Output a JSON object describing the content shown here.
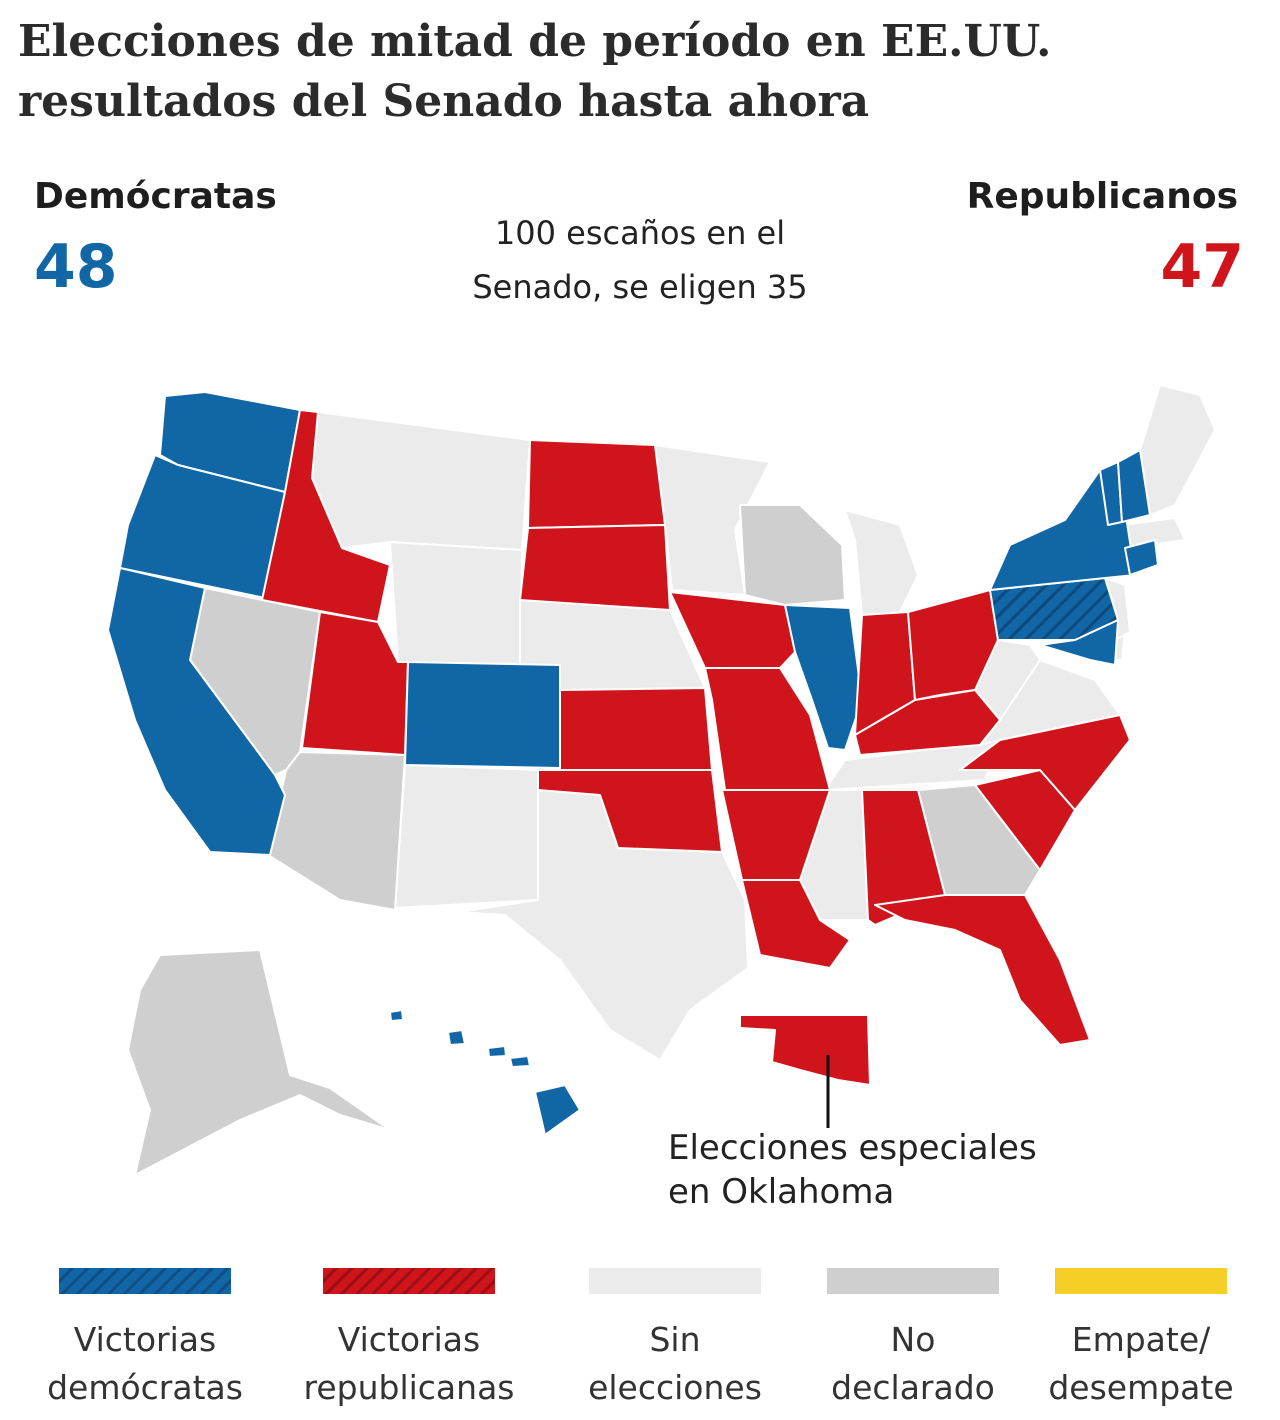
{
  "title": {
    "line1": "Elecciones de mitad de período en EE.UU.",
    "line2": "resultados del Senado hasta ahora"
  },
  "democrats": {
    "label": "Demócratas",
    "seats": "48"
  },
  "republicans": {
    "label": "Republicanos",
    "seats": "47"
  },
  "senate_info": {
    "line1": "100 escaños en el",
    "line2": "Senado, se eligen 35"
  },
  "callout": {
    "line1": "Elecciones especiales",
    "line2": "en Oklahoma"
  },
  "colors": {
    "democrat": "#1166a6",
    "republican": "#d0141c",
    "no_election": "#ebebeb",
    "undeclared": "#cfcfcf",
    "tie_runoff": "#f5cf25"
  },
  "legend": [
    {
      "line1": "Victorias",
      "line2": "demócratas",
      "swatch": "stripe-blue"
    },
    {
      "line1": "Victorias",
      "line2": "republicanas",
      "swatch": "stripe-red"
    },
    {
      "line1": "Sin",
      "line2": "elecciones",
      "swatch": "no_election"
    },
    {
      "line1": "No",
      "line2": "declarado",
      "swatch": "undeclared"
    },
    {
      "line1": "Empate/",
      "line2": "desempate",
      "swatch": "tie_runoff"
    }
  ],
  "states": {
    "democrat": [
      "WA",
      "OR",
      "CA",
      "CO",
      "IL",
      "NY",
      "PA",
      "MD",
      "CT",
      "VT",
      "NH",
      "HI"
    ],
    "republican": [
      "ID",
      "UT",
      "ND",
      "SD",
      "IA",
      "KS",
      "MO",
      "OK",
      "AR",
      "LA",
      "IN",
      "OH",
      "KY",
      "NC",
      "SC",
      "AL",
      "FL"
    ],
    "undeclared": [
      "NV",
      "AZ",
      "WI",
      "GA",
      "AK"
    ],
    "no_election": [
      "MT",
      "WY",
      "NE",
      "NM",
      "TX",
      "MN",
      "MI",
      "TN",
      "MS",
      "VA",
      "WV",
      "ME",
      "MA",
      "NJ",
      "DE"
    ]
  }
}
